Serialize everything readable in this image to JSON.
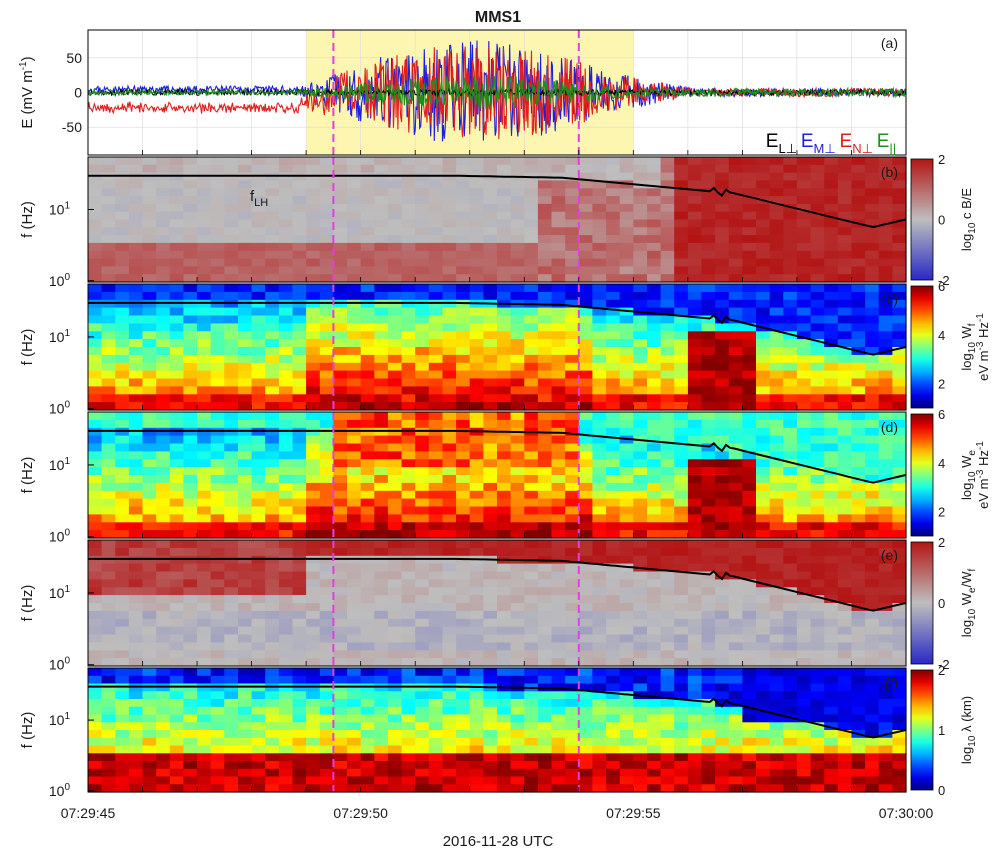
{
  "title": "MMS1",
  "xlabel": "2016-11-28 UTC",
  "x_ticks": [
    "07:29:45",
    "07:29:50",
    "07:29:55",
    "07:30:00"
  ],
  "colors": {
    "highlight": "#fdf6b0",
    "marker": "#e23ee2",
    "flh": "#000000",
    "E_L": "#000000",
    "E_M": "#1f1fe0",
    "E_N": "#e01f1f",
    "E_par": "#1f8f1f"
  },
  "chart_data": [
    {
      "type": "line",
      "panel": "(a)",
      "ylabel": "E (mV m",
      "ylabel_sup": "-1",
      "ylabel_end": ")",
      "ylim": [
        -90,
        90
      ],
      "y_ticks": [
        "50",
        "0",
        "-50"
      ],
      "x_range": [
        "07:29:45",
        "07:30:00"
      ],
      "highlight_interval": [
        "07:29:49",
        "07:29:55"
      ],
      "marker_times": [
        "07:29:49.5",
        "07:29:54"
      ],
      "legend_position": "bottom-right",
      "series": [
        {
          "name": "E",
          "sub": "L⊥",
          "color_key": "E_L",
          "amplitude_mV_m": 8
        },
        {
          "name": "E",
          "sub": "M⊥",
          "color_key": "E_M",
          "amplitude_mV_m": 75
        },
        {
          "name": "E",
          "sub": "N⊥",
          "color_key": "E_N",
          "amplitude_mV_m": 70
        },
        {
          "name": "E",
          "sub": "||",
          "color_key": "E_par",
          "amplitude_mV_m": 25
        }
      ]
    },
    {
      "type": "heatmap",
      "panel": "(b)",
      "ylabel": "f (Hz)",
      "yscale": "log",
      "ylim": [
        1,
        60
      ],
      "y_ticks": [
        "10",
        "10"
      ],
      "y_tick_exps": [
        "1",
        "0"
      ],
      "colorbar_label": "log",
      "colorbar_label_sub": "10",
      "colorbar_label_rest": " c B/E",
      "clim": [
        -2,
        2
      ],
      "colorbar_ticks": [
        "2",
        "0",
        "-2"
      ],
      "colormap": "diverging blue-grey-red",
      "flh_label": "f",
      "flh_label_sub": "LH"
    },
    {
      "type": "heatmap",
      "panel": "(c)",
      "ylabel": "f (Hz)",
      "yscale": "log",
      "ylim": [
        1,
        60
      ],
      "y_ticks": [
        "10",
        "10"
      ],
      "y_tick_exps": [
        "1",
        "0"
      ],
      "colorbar_label": "log",
      "colorbar_label_sub": "10",
      "colorbar_label_rest": " W",
      "colorbar_label_sub2": "f",
      "colorbar_unit": "eV m",
      "colorbar_unit_sup1": "-3",
      "colorbar_unit_mid": " Hz",
      "colorbar_unit_sup2": "-1",
      "clim": [
        1,
        6
      ],
      "colorbar_ticks": [
        "6",
        "4",
        "2"
      ],
      "colormap": "jet"
    },
    {
      "type": "heatmap",
      "panel": "(d)",
      "ylabel": "f (Hz)",
      "yscale": "log",
      "ylim": [
        1,
        60
      ],
      "y_ticks": [
        "10",
        "10"
      ],
      "y_tick_exps": [
        "1",
        "0"
      ],
      "colorbar_label": "log",
      "colorbar_label_sub": "10",
      "colorbar_label_rest": " W",
      "colorbar_label_sub2": "e",
      "colorbar_unit": "eV m",
      "colorbar_unit_sup1": "-3",
      "colorbar_unit_mid": " Hz",
      "colorbar_unit_sup2": "-1",
      "clim": [
        1,
        6
      ],
      "colorbar_ticks": [
        "6",
        "4",
        "2"
      ],
      "colormap": "jet"
    },
    {
      "type": "heatmap",
      "panel": "(e)",
      "ylabel": "f (Hz)",
      "yscale": "log",
      "ylim": [
        1,
        60
      ],
      "y_ticks": [
        "10",
        "10"
      ],
      "y_tick_exps": [
        "1",
        "0"
      ],
      "colorbar_label": "log",
      "colorbar_label_sub": "10",
      "colorbar_label_rest": " W",
      "colorbar_label_sub2": "e",
      "colorbar_label_rest2": "/W",
      "colorbar_label_sub3": "f",
      "clim": [
        -2,
        2
      ],
      "colorbar_ticks": [
        "2",
        "0",
        "-2"
      ],
      "colormap": "diverging blue-grey-red"
    },
    {
      "type": "heatmap",
      "panel": "(f)",
      "ylabel": "f (Hz)",
      "yscale": "log",
      "ylim": [
        1,
        60
      ],
      "y_ticks": [
        "10",
        "10"
      ],
      "y_tick_exps": [
        "1",
        "0"
      ],
      "colorbar_label": "log",
      "colorbar_label_sub": "10",
      "colorbar_label_rest": " λ (km)",
      "clim": [
        0,
        2
      ],
      "colorbar_ticks": [
        "2",
        "1",
        "0"
      ],
      "colormap": "jet"
    }
  ]
}
